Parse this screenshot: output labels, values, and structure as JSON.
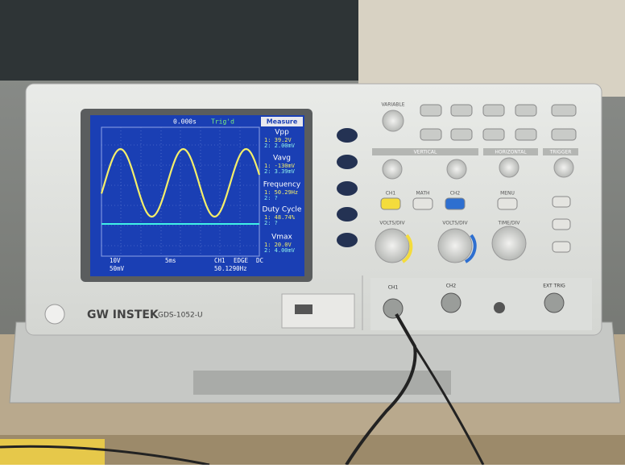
{
  "brand": "GW INSTEK",
  "model": "GDS-1052-U",
  "screen": {
    "header": {
      "time": "0.000s",
      "trigger": "Trig'd"
    },
    "measure": {
      "title": "Measure",
      "items": [
        {
          "name": "Vpp",
          "ch1": "1: 39.2V",
          "ch2": "2: 2.00mV"
        },
        {
          "name": "Vavg",
          "ch1": "1: -130mV",
          "ch2": "2: 3.39mV"
        },
        {
          "name": "Frequency",
          "ch1": "1: 50.29Hz",
          "ch2": "2: ?"
        },
        {
          "name": "Duty Cycle",
          "ch1": "1: 48.74%",
          "ch2": "2: ?"
        },
        {
          "name": "Vmax",
          "ch1": "1: 20.0V",
          "ch2": "2: 4.00mV"
        }
      ]
    },
    "status": {
      "ch1_scale": "10V",
      "timebase": "5ms",
      "trigger_source": "CH1",
      "trigger_type": "EDGE",
      "coupling": "DC",
      "ch2_scale": "50mV",
      "trigger_freq": "50.1290Hz"
    }
  },
  "panel": {
    "variable": "VARIABLE",
    "vertical": "VERTICAL",
    "horizontal": "HORIZONTAL",
    "trigger": "TRIGGER",
    "ch1": "CH1",
    "math": "MATH",
    "ch2": "CH2",
    "volts_div": "VOLTS/DIV",
    "time_div": "TIME/DIV",
    "menu": "MENU",
    "ch1_input": "CH1",
    "ch2_input": "CH2",
    "ext_trig": "EXT TRIG"
  }
}
